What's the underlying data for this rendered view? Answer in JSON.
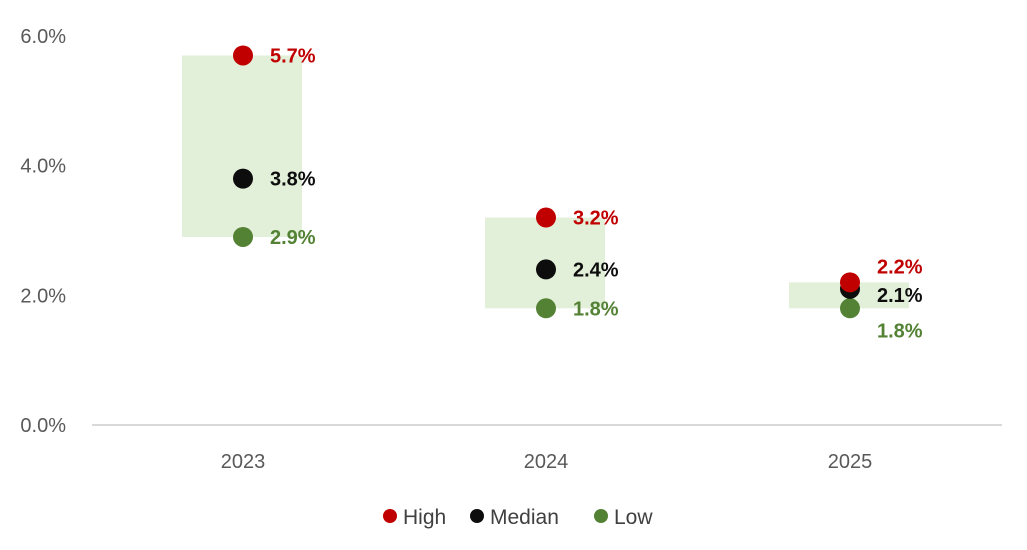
{
  "chart_data": {
    "type": "scatter",
    "categories": [
      "2023",
      "2024",
      "2025"
    ],
    "series": [
      {
        "name": "High",
        "color": "#c00000",
        "values": [
          5.7,
          3.2,
          2.2
        ],
        "labels": [
          "5.7%",
          "3.2%",
          "2.2%"
        ]
      },
      {
        "name": "Median",
        "color": "#0d0d0d",
        "values": [
          3.8,
          2.4,
          2.1
        ],
        "labels": [
          "3.8%",
          "2.4%",
          "2.1%"
        ]
      },
      {
        "name": "Low",
        "color": "#548235",
        "values": [
          2.9,
          1.8,
          1.8
        ],
        "labels": [
          "2.9%",
          "1.8%",
          "1.8%"
        ]
      }
    ],
    "range_band_color": "#e2efd9",
    "y_ticks": [
      "0.0%",
      "2.0%",
      "4.0%",
      "6.0%"
    ],
    "ylim": [
      0,
      6
    ],
    "legend_position": "bottom",
    "grid": false,
    "title": "",
    "xlabel": "",
    "ylabel": ""
  }
}
